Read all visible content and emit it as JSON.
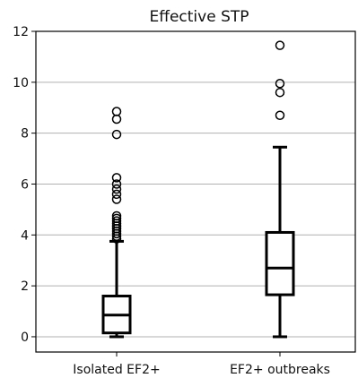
{
  "chart_data": {
    "type": "box",
    "title": "Effective STP",
    "xlabel": "",
    "ylabel": "",
    "ylim": [
      -0.6,
      12
    ],
    "yticks": [
      0,
      2,
      4,
      6,
      8,
      10,
      12
    ],
    "grid": "horizontal",
    "categories": [
      "Isolated EF2+",
      "EF2+ outbreaks"
    ],
    "boxes": [
      {
        "whisker_low": 0.0,
        "q1": 0.15,
        "median": 0.85,
        "q3": 1.6,
        "whisker_high": 3.75,
        "outliers": [
          3.85,
          3.95,
          4.05,
          4.15,
          4.25,
          4.35,
          4.45,
          4.55,
          4.65,
          4.75,
          5.4,
          5.6,
          5.8,
          6.0,
          6.25,
          7.95,
          8.55,
          8.85
        ]
      },
      {
        "whisker_low": 0.0,
        "q1": 1.65,
        "median": 2.7,
        "q3": 4.1,
        "whisker_high": 7.45,
        "outliers": [
          8.7,
          9.6,
          9.95,
          11.45
        ]
      }
    ]
  }
}
